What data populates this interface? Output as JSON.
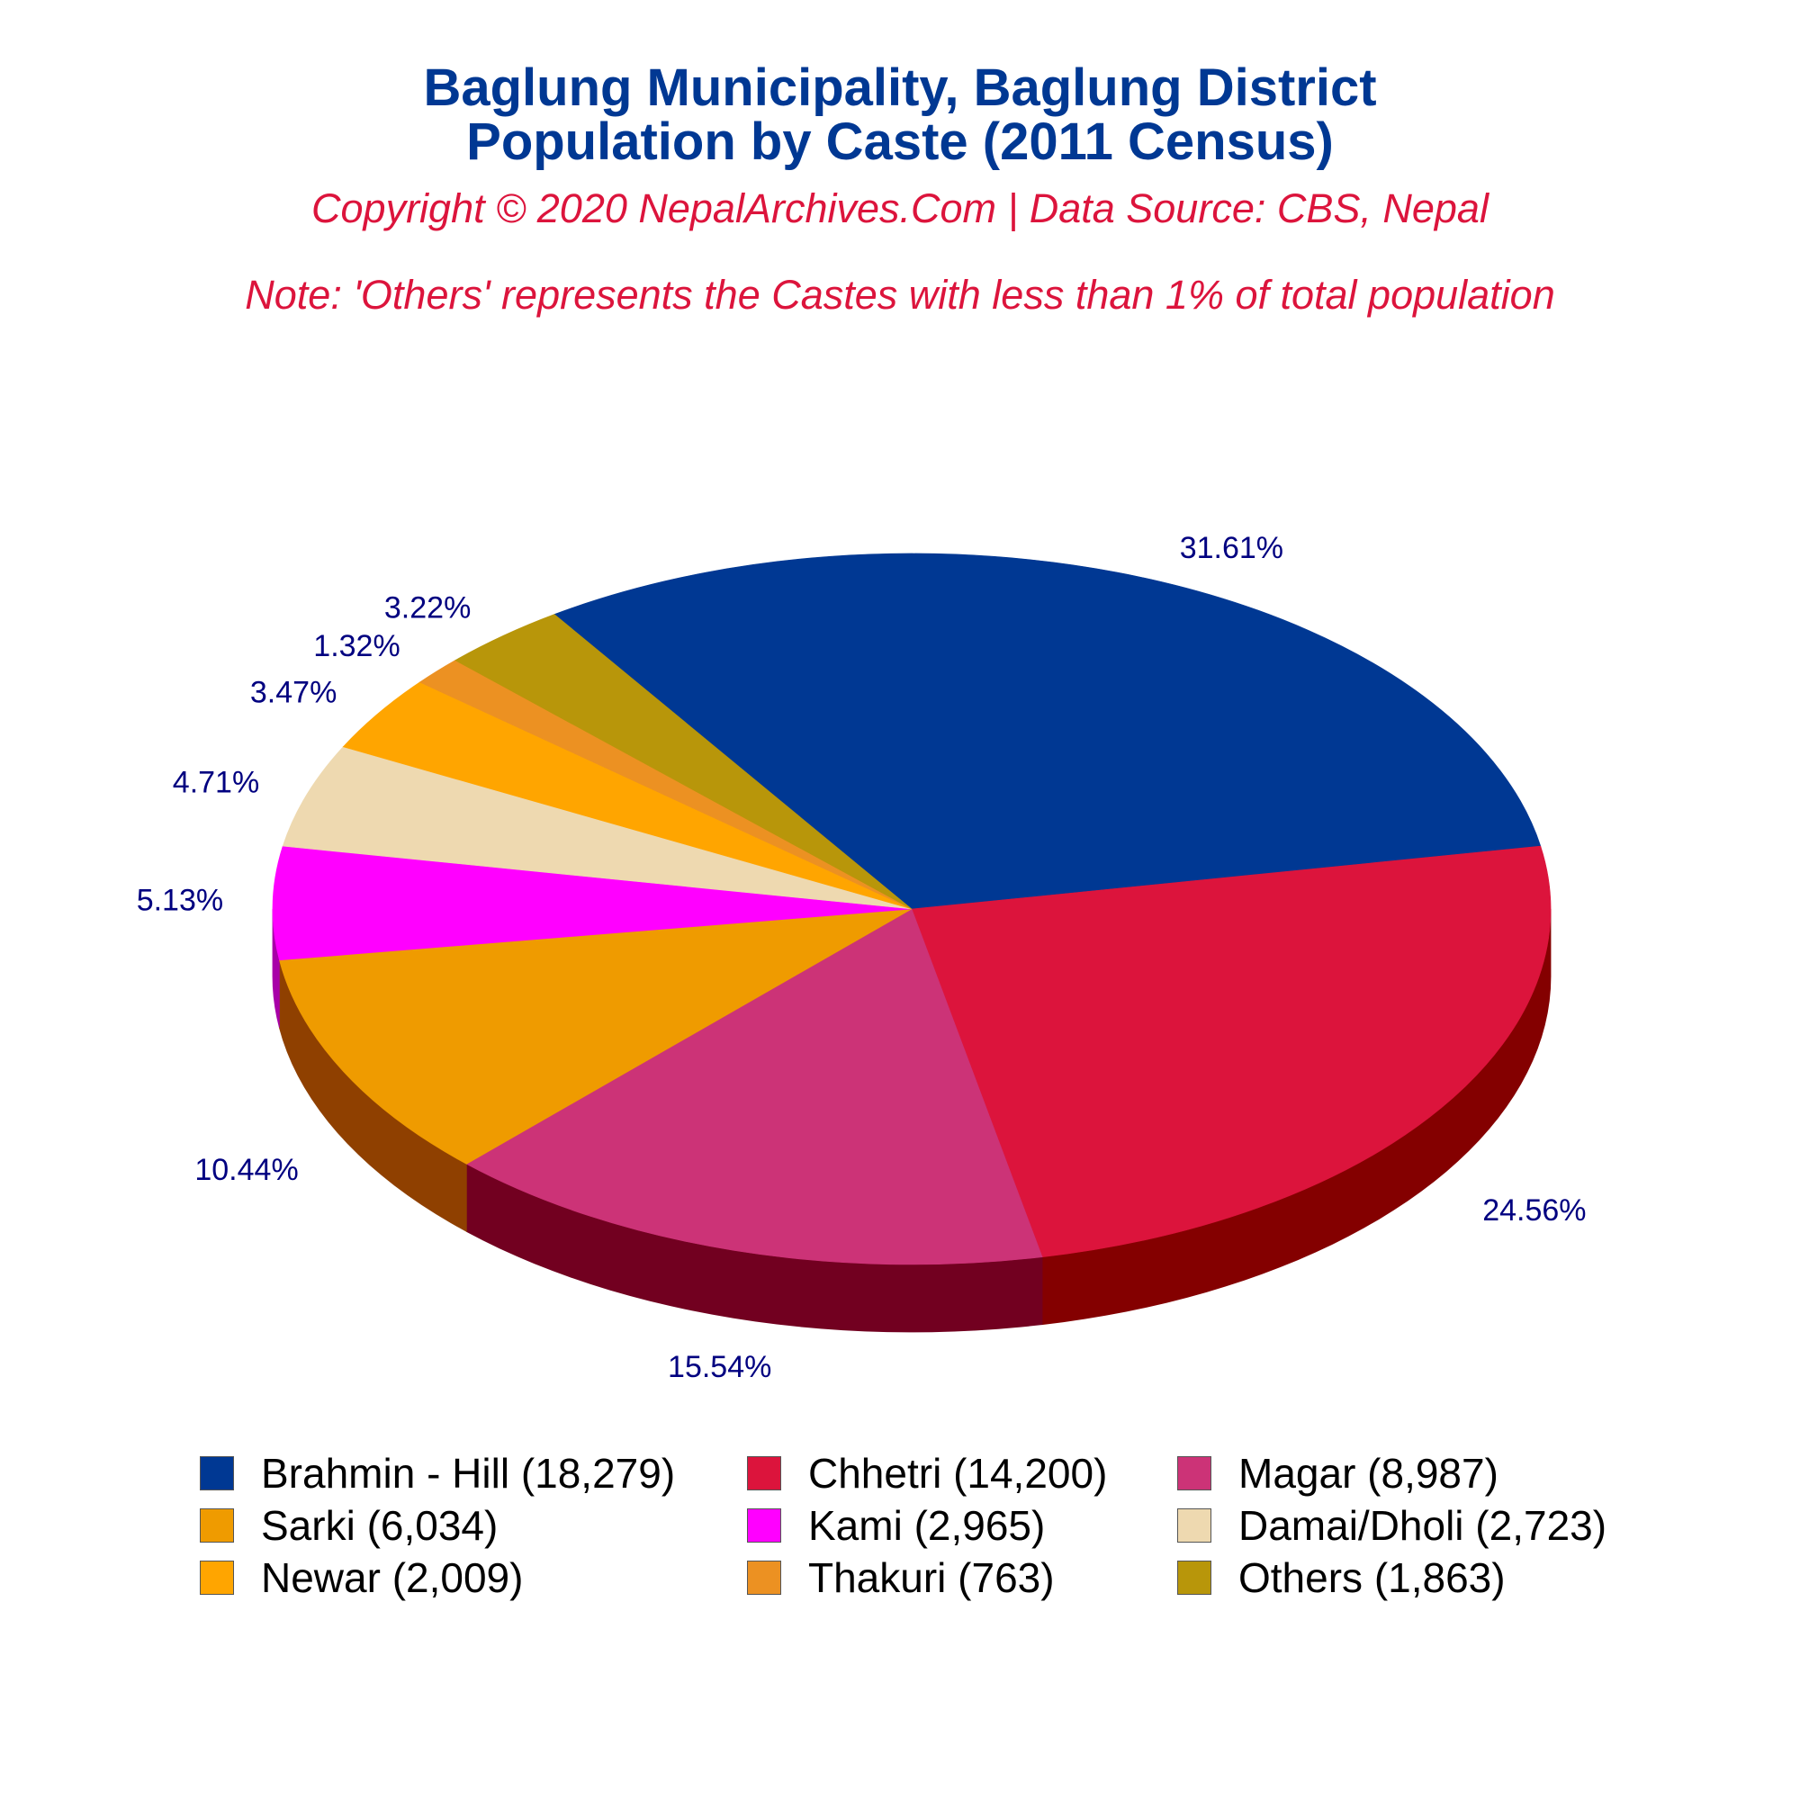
{
  "header": {
    "title_line1": "Baglung Municipality, Baglung District",
    "title_line2": "Population by Caste (2011 Census)",
    "copyright": "Copyright © 2020 NepalArchives.Com | Data Source: CBS, Nepal",
    "note": "Note: 'Others' represents the Castes with less than 1% of total population"
  },
  "chart_data": {
    "type": "pie",
    "style": "3d",
    "title": "Baglung Municipality, Baglung District Population by Caste (2011 Census)",
    "legend_position": "bottom",
    "label_color": "#000080",
    "slices": [
      {
        "label": "Brahmin - Hill",
        "value": 18279,
        "percent_label": "31.61%",
        "legend_label": "Brahmin - Hill (18,279)",
        "color": "#003893",
        "side_color": "#001e55"
      },
      {
        "label": "Chhetri",
        "value": 14200,
        "percent_label": "24.56%",
        "legend_label": "Chhetri (14,200)",
        "color": "#dc143c",
        "side_color": "#840000"
      },
      {
        "label": "Magar",
        "value": 8987,
        "percent_label": "15.54%",
        "legend_label": "Magar (8,987)",
        "color": "#cc3377",
        "side_color": "#720020"
      },
      {
        "label": "Sarki",
        "value": 6034,
        "percent_label": "10.44%",
        "legend_label": "Sarki (6,034)",
        "color": "#ef9b00",
        "side_color": "#8f4000"
      },
      {
        "label": "Kami",
        "value": 2965,
        "percent_label": "5.13%",
        "legend_label": "Kami (2,965)",
        "color": "#ff00ff",
        "side_color": "#a800a8"
      },
      {
        "label": "Damai/Dholi",
        "value": 2723,
        "percent_label": "4.71%",
        "legend_label": "Damai/Dholi (2,723)",
        "color": "#eed9b0",
        "side_color": "#9c8660"
      },
      {
        "label": "Newar",
        "value": 2009,
        "percent_label": "3.47%",
        "legend_label": "Newar (2,009)",
        "color": "#ffa500",
        "side_color": "#a86400"
      },
      {
        "label": "Thakuri",
        "value": 763,
        "percent_label": "1.32%",
        "legend_label": "Thakuri (763)",
        "color": "#ec9122",
        "side_color": "#9a5a10"
      },
      {
        "label": "Others",
        "value": 1863,
        "percent_label": "3.22%",
        "legend_label": "Others (1,863)",
        "color": "#b8960a",
        "side_color": "#6e5800"
      }
    ]
  }
}
